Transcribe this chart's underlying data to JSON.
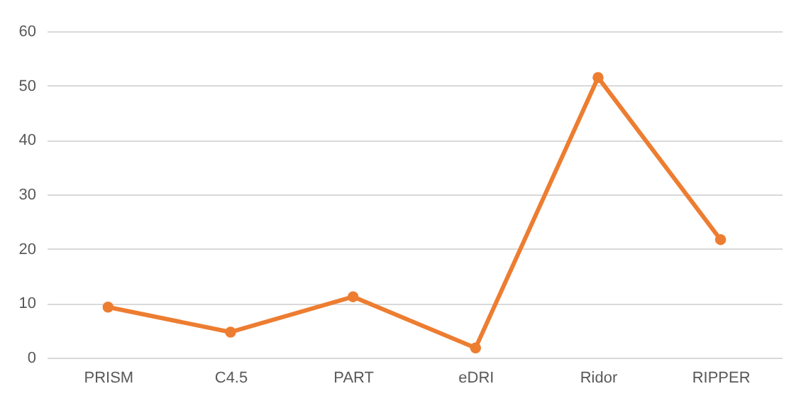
{
  "chart_data": {
    "type": "line",
    "categories": [
      "PRISM",
      "C4.5",
      "PART",
      "eDRI",
      "Ridor",
      "RIPPER"
    ],
    "series": [
      {
        "color": "#ed7d31",
        "values": [
          9.3,
          4.7,
          11.2,
          1.8,
          51.5,
          21.7
        ]
      }
    ],
    "ylim": [
      0,
      60
    ],
    "yticks": [
      0,
      10,
      20,
      30,
      40,
      50,
      60
    ],
    "grid": "y",
    "marker": "circle",
    "line_style": "solid"
  }
}
